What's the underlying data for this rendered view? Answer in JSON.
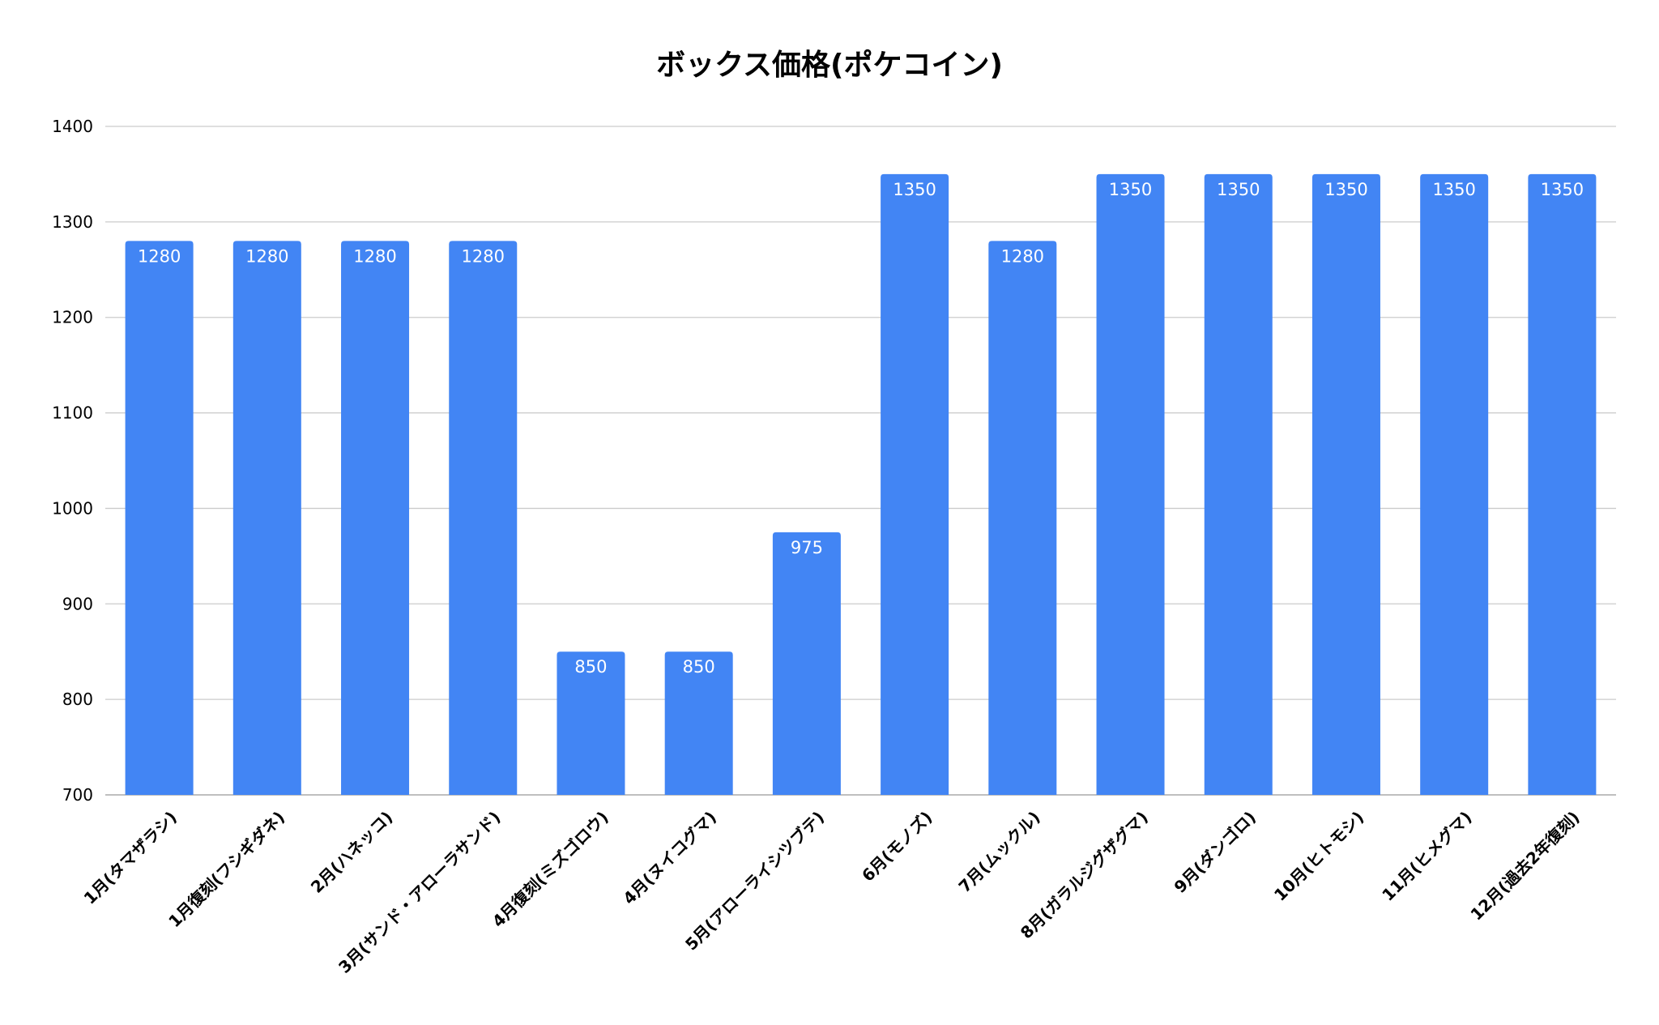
{
  "chart_data": {
    "type": "bar",
    "title": "ボックス価格(ポケコイン)",
    "xlabel": "",
    "ylabel": "",
    "ylim": [
      700,
      1400
    ],
    "yticks": [
      700,
      800,
      900,
      1000,
      1100,
      1200,
      1300,
      1400
    ],
    "grid": true,
    "legend": "none",
    "bar_color": "#4285f4",
    "data_label_color": "#ffffff",
    "categories": [
      "1月(タマザラシ)",
      "1月復刻(フシギダネ)",
      "2月(ハネッコ)",
      "3月(サンド・アローラサンド)",
      "4月復刻(ミズゴロウ)",
      "4月(ヌイコグマ)",
      "5月(アローライシツブテ)",
      "6月(モノズ)",
      "7月(ムックル)",
      "8月(ガラルジグザグマ)",
      "9月(ダンゴロ)",
      "10月(ヒトモシ)",
      "11月(ヒメグマ)",
      "12月(過去2年復刻)"
    ],
    "values": [
      1280,
      1280,
      1280,
      1280,
      850,
      850,
      975,
      1350,
      1280,
      1350,
      1350,
      1350,
      1350,
      1350
    ]
  }
}
